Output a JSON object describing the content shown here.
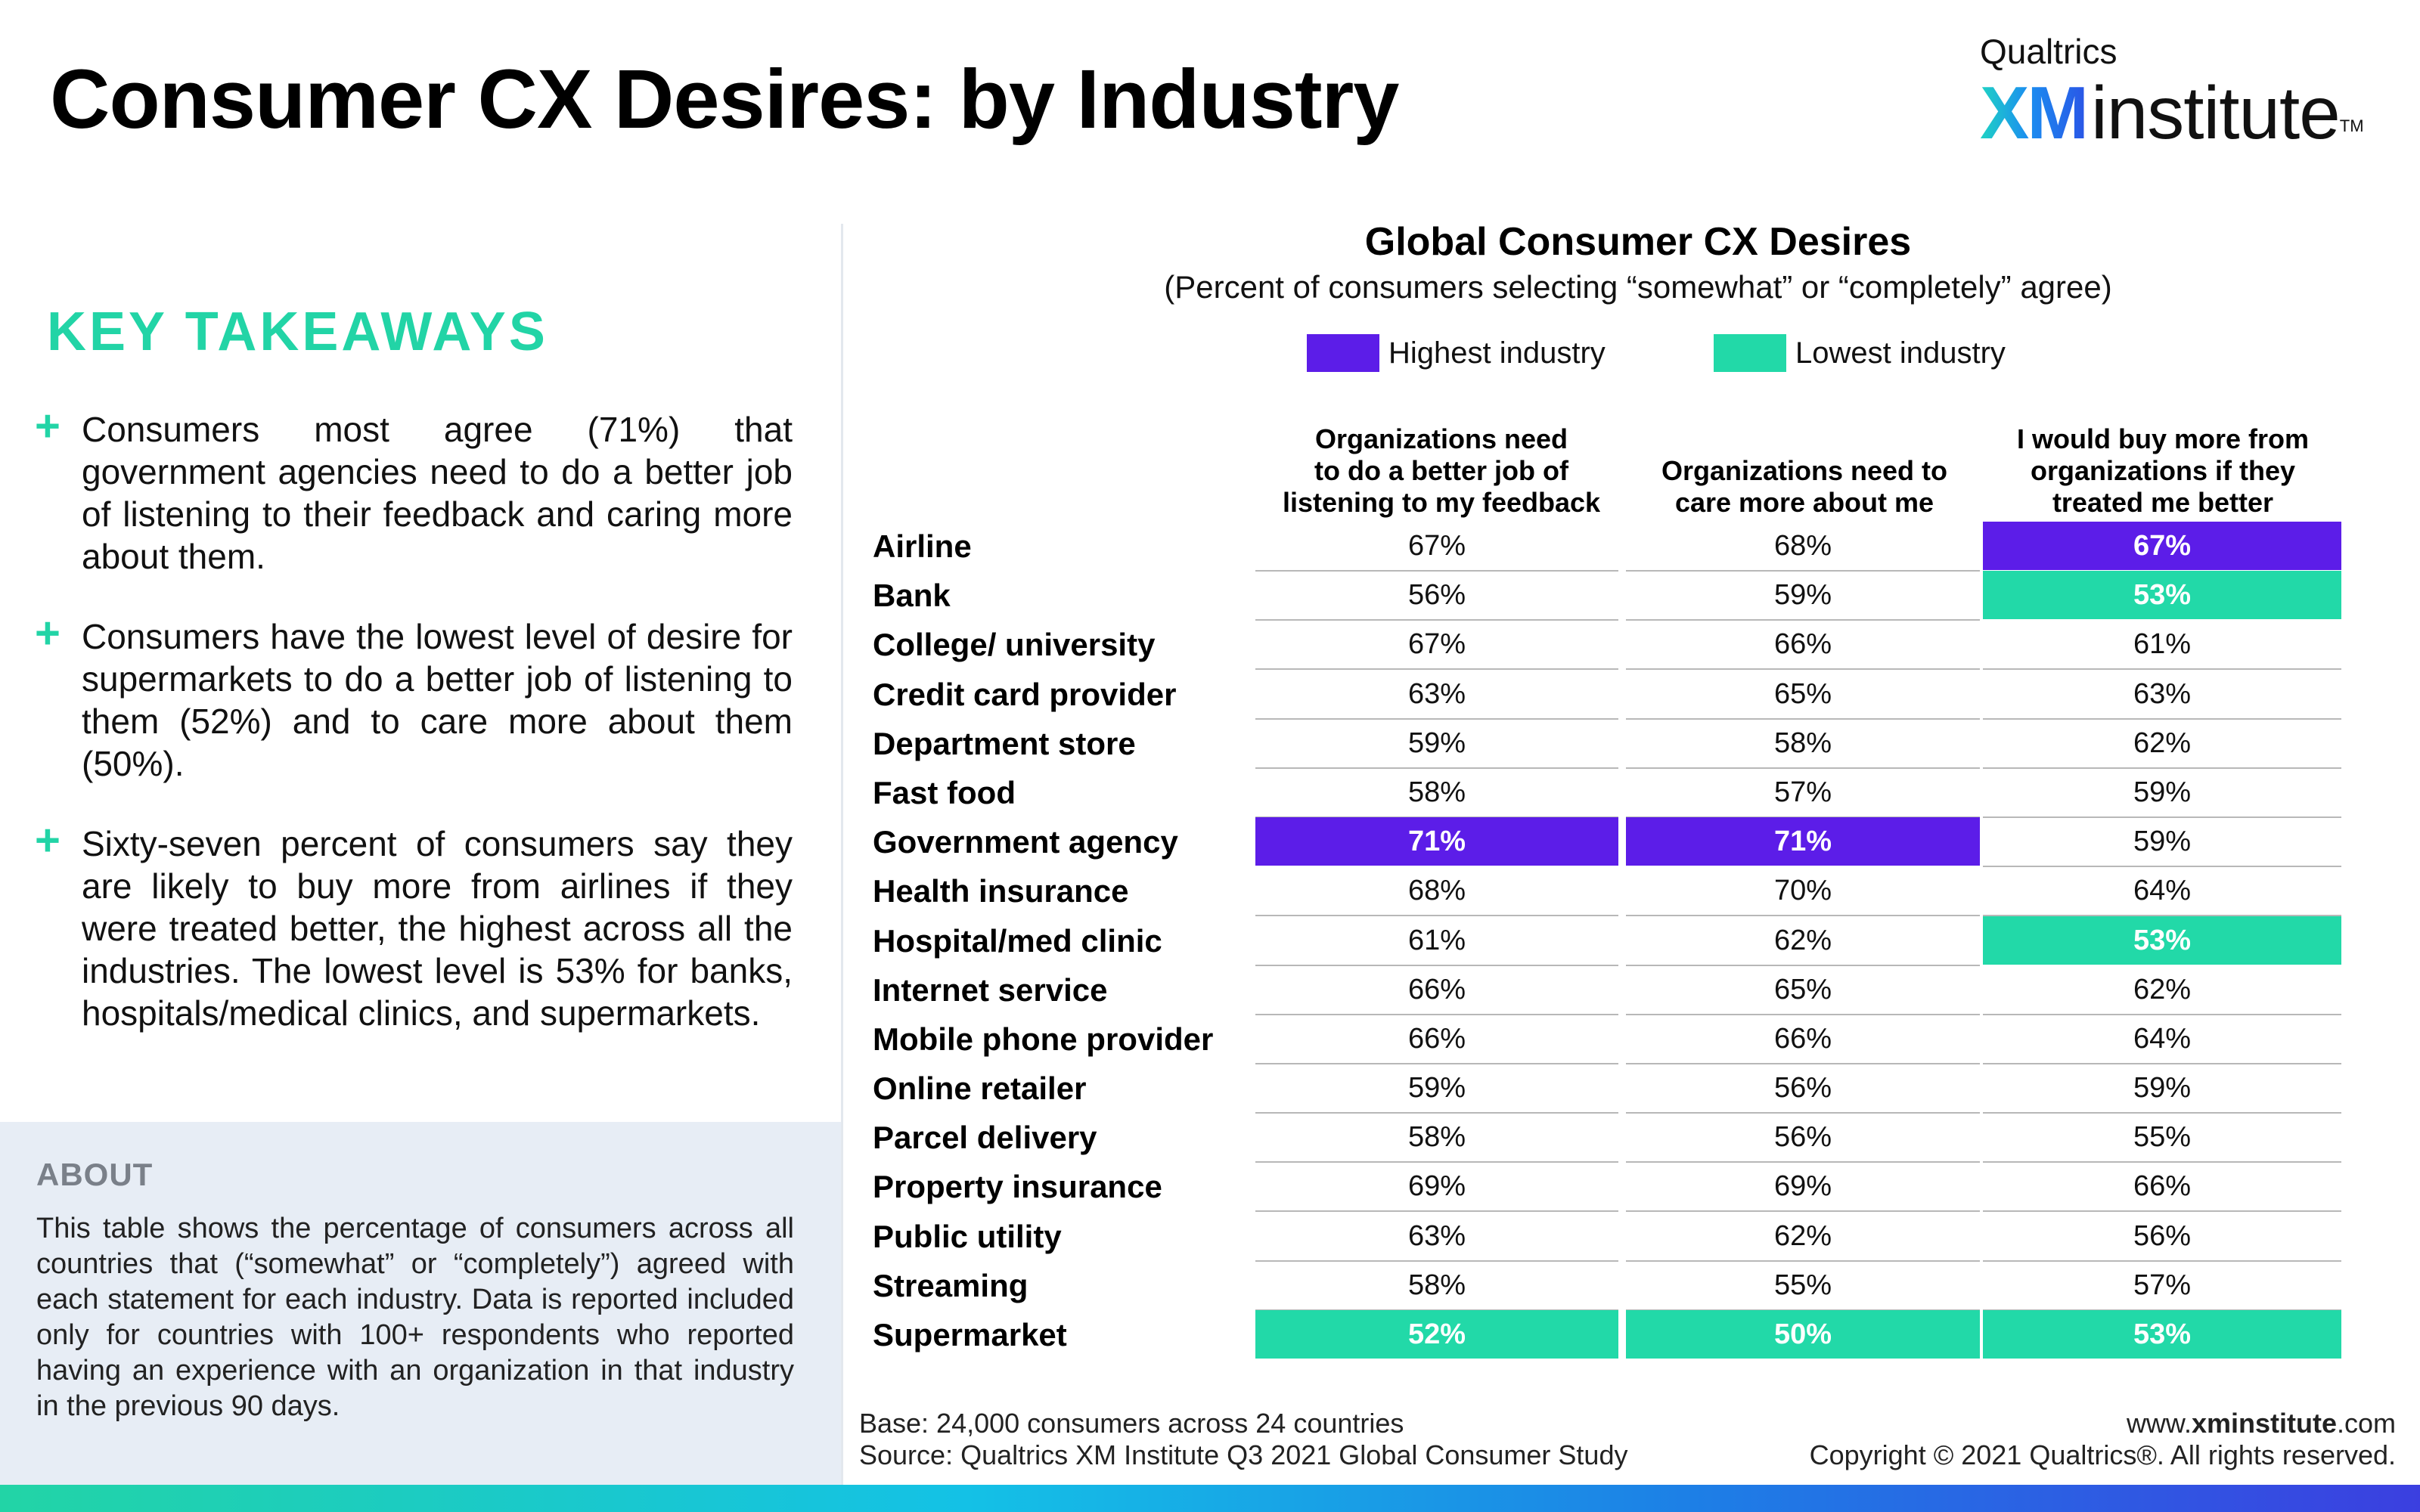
{
  "page": {
    "title": "Consumer CX Desires: by Industry"
  },
  "logo": {
    "brand": "Qualtrics",
    "xm": "XM",
    "institute": "institute",
    "tm": "TM"
  },
  "takeaways": {
    "heading": "KEY TAKEAWAYS",
    "items": [
      "Consumers most agree (71%) that government agencies need to do a better job of listening to their feedback and caring more about them.",
      "Consumers have the lowest level of desire for supermarkets to do a better job of listening to them (52%) and to care more about them (50%).",
      "Sixty-seven percent of consumers say they are likely to buy more from airlines if they were treated better, the highest across all the industries. The lowest level is 53% for banks, hospitals/medical clinics, and supermarkets."
    ]
  },
  "about": {
    "heading": "ABOUT",
    "text": "This table shows the percentage of consumers across all countries that (“somewhat” or “completely”) agreed with each statement for each industry. Data is reported included only for countries with 100+ respondents who reported having an experience with an organization in that industry in the previous 90 days."
  },
  "chart": {
    "title": "Global Consumer CX Desires",
    "subtitle": "(Percent of consumers selecting “somewhat” or “completely” agree)",
    "legend": [
      {
        "label": "Highest industry",
        "color": "#5c1de8"
      },
      {
        "label": "Lowest industry",
        "color": "#22d9a8"
      }
    ],
    "columns": [
      [
        "Organizations need",
        "to do a better job of",
        "listening to my feedback"
      ],
      [
        "Organizations need to",
        "care more about me"
      ],
      [
        "I would buy more from",
        "organizations if they",
        "treated me better"
      ]
    ]
  },
  "chart_data": {
    "type": "table",
    "unit": "%",
    "rows": [
      {
        "industry": "Airline",
        "values": [
          "67%",
          "68%",
          "67%"
        ],
        "highlight": [
          "",
          "",
          "high"
        ]
      },
      {
        "industry": "Bank",
        "values": [
          "56%",
          "59%",
          "53%"
        ],
        "highlight": [
          "",
          "",
          "low"
        ]
      },
      {
        "industry": "College/ university",
        "values": [
          "67%",
          "66%",
          "61%"
        ],
        "highlight": [
          "",
          "",
          ""
        ]
      },
      {
        "industry": "Credit card provider",
        "values": [
          "63%",
          "65%",
          "63%"
        ],
        "highlight": [
          "",
          "",
          ""
        ]
      },
      {
        "industry": "Department store",
        "values": [
          "59%",
          "58%",
          "62%"
        ],
        "highlight": [
          "",
          "",
          ""
        ]
      },
      {
        "industry": "Fast food",
        "values": [
          "58%",
          "57%",
          "59%"
        ],
        "highlight": [
          "",
          "",
          ""
        ]
      },
      {
        "industry": "Government agency",
        "values": [
          "71%",
          "71%",
          "59%"
        ],
        "highlight": [
          "high",
          "high",
          ""
        ]
      },
      {
        "industry": "Health insurance",
        "values": [
          "68%",
          "70%",
          "64%"
        ],
        "highlight": [
          "",
          "",
          ""
        ]
      },
      {
        "industry": "Hospital/med clinic",
        "values": [
          "61%",
          "62%",
          "53%"
        ],
        "highlight": [
          "",
          "",
          "low"
        ]
      },
      {
        "industry": "Internet service",
        "values": [
          "66%",
          "65%",
          "62%"
        ],
        "highlight": [
          "",
          "",
          ""
        ]
      },
      {
        "industry": "Mobile phone provider",
        "values": [
          "66%",
          "66%",
          "64%"
        ],
        "highlight": [
          "",
          "",
          ""
        ]
      },
      {
        "industry": "Online retailer",
        "values": [
          "59%",
          "56%",
          "59%"
        ],
        "highlight": [
          "",
          "",
          ""
        ]
      },
      {
        "industry": "Parcel delivery",
        "values": [
          "58%",
          "56%",
          "55%"
        ],
        "highlight": [
          "",
          "",
          ""
        ]
      },
      {
        "industry": "Property insurance",
        "values": [
          "69%",
          "69%",
          "66%"
        ],
        "highlight": [
          "",
          "",
          ""
        ]
      },
      {
        "industry": "Public utility",
        "values": [
          "63%",
          "62%",
          "56%"
        ],
        "highlight": [
          "",
          "",
          ""
        ]
      },
      {
        "industry": "Streaming",
        "values": [
          "58%",
          "55%",
          "57%"
        ],
        "highlight": [
          "",
          "",
          ""
        ]
      },
      {
        "industry": "Supermarket",
        "values": [
          "52%",
          "50%",
          "53%"
        ],
        "highlight": [
          "low",
          "low",
          "low"
        ]
      }
    ]
  },
  "footer": {
    "base": "Base: 24,000 consumers across 24 countries",
    "source": "Source: Qualtrics XM Institute Q3 2021 Global Consumer Study",
    "url_prefix": "www.",
    "url_bold": "xminstitute",
    "url_suffix": ".com",
    "copyright": "Copyright © 2021 Qualtrics®. All rights reserved."
  }
}
